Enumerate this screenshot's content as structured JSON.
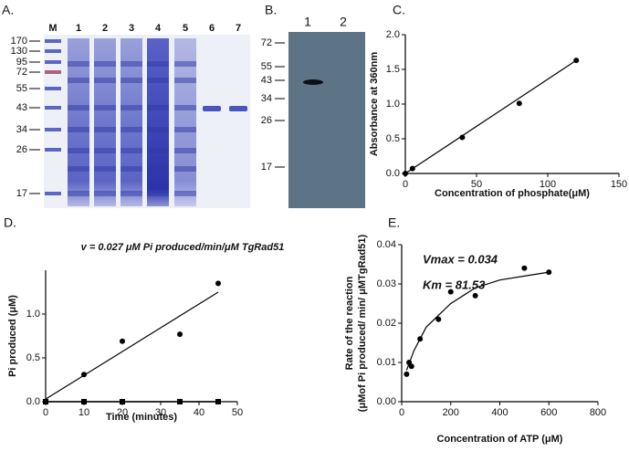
{
  "gels": {
    "A": {
      "panel": "A.",
      "lanes": [
        "M",
        "1",
        "2",
        "3",
        "4",
        "5",
        "6",
        "7"
      ],
      "markers": [
        "170",
        "130",
        "95",
        "72",
        "55",
        "43",
        "34",
        "26",
        "17"
      ]
    },
    "B": {
      "panel": "B.",
      "lanes": [
        "1",
        "2"
      ],
      "markers": [
        "72",
        "55",
        "43",
        "34",
        "26",
        "17"
      ]
    }
  },
  "chart_data": [
    {
      "type": "scatter",
      "panel": "C.",
      "xlabel": "Concentration of phosphate(μM)",
      "ylabel": "Absorbance at 360nm",
      "series": [
        {
          "x": [
            0,
            5,
            40,
            80,
            120
          ],
          "values": [
            0,
            0.07,
            0.52,
            1.01,
            1.63
          ],
          "marker": "circle",
          "color": "#000000"
        }
      ],
      "fit": {
        "x": [
          0,
          120
        ],
        "values": [
          0,
          1.63
        ]
      },
      "xlim": [
        0,
        150
      ],
      "xticks": [
        0,
        50,
        100,
        150
      ],
      "ylim": [
        0,
        2
      ],
      "yticks": [
        {
          "value": 0,
          "label": "0.0"
        },
        0.5,
        {
          "value": 1,
          "label": "1.0"
        },
        1.5,
        {
          "value": 2,
          "label": "2.0"
        }
      ]
    },
    {
      "type": "scatter",
      "panel": "D.",
      "title": "v = 0.027 μM  Pi produced/min/μM TgRad51",
      "xlabel": "Time (minutes)",
      "ylabel": "Pi produced (μM)",
      "series": [
        {
          "x": [
            10,
            20,
            35,
            45
          ],
          "values": [
            0.31,
            0.69,
            0.77,
            1.35
          ],
          "marker": "circle",
          "color": "#000000"
        },
        {
          "x": [
            0,
            10,
            20,
            35,
            45
          ],
          "values": [
            0,
            0,
            0,
            0,
            0
          ],
          "marker": "square",
          "color": "#000000",
          "line": true
        }
      ],
      "fit": {
        "x": [
          0,
          45
        ],
        "values": [
          0.03,
          1.25
        ]
      },
      "xlim": [
        0,
        50
      ],
      "xticks": [
        0,
        10,
        20,
        30,
        40,
        50
      ],
      "ylim": [
        0,
        1.5
      ],
      "yticks": [
        {
          "value": 0,
          "label": "0.0"
        },
        0.5,
        {
          "value": 1,
          "label": "1.0"
        }
      ]
    },
    {
      "type": "scatter",
      "panel": "E.",
      "xlabel": "Concentration of ATP (μM)",
      "ylabel": [
        "Rate of the reaction",
        "(μMof Pi produced/ min/ μMTgRad51)"
      ],
      "annotations": [
        "Vmax = 0.034",
        "Km = 81.53"
      ],
      "series": [
        {
          "x": [
            20,
            30,
            40,
            75,
            150,
            200,
            300,
            500,
            600
          ],
          "values": [
            0.007,
            0.01,
            0.009,
            0.016,
            0.021,
            0.028,
            0.027,
            0.034,
            0.033
          ],
          "marker": "circle",
          "color": "#000000"
        }
      ],
      "fit": {
        "x": [
          20,
          50,
          100,
          200,
          300,
          400,
          500,
          600
        ],
        "values": [
          0.008,
          0.013,
          0.019,
          0.025,
          0.029,
          0.031,
          0.032,
          0.033
        ]
      },
      "xlim": [
        0,
        800
      ],
      "xticks": [
        0,
        200,
        400,
        600,
        800
      ],
      "ylim": [
        0,
        0.04
      ],
      "yticks": [
        {
          "value": 0,
          "label": "0.00"
        },
        {
          "value": 0.01,
          "label": "0.01"
        },
        {
          "value": 0.02,
          "label": "0.02"
        },
        {
          "value": 0.03,
          "label": "0.03"
        },
        {
          "value": 0.04,
          "label": "0.04"
        }
      ]
    }
  ]
}
